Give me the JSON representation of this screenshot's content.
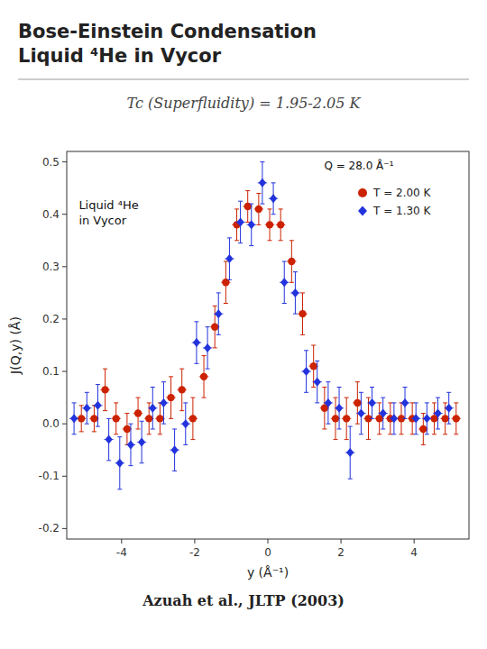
{
  "chart_data": {
    "type": "scatter",
    "title": "Bose-Einstein Condensation\nLiquid ⁴He in Vycor",
    "subtitle": "Tc (Superfluidity) = 1.95-2.05 K",
    "x_label": "y (Å⁻¹)",
    "y_label": "J(Q,y) (Å)",
    "annotations": [
      {
        "text": "Liquid ⁴He\nin Vycor"
      },
      {
        "text": "Q = 28.0 Å⁻¹"
      },
      {
        "text": "Azuah et al., JLTP (2003)"
      }
    ],
    "xlim": [
      -5.5,
      5.5
    ],
    "ylim": [
      -0.22,
      0.52
    ],
    "xticks": [
      -4,
      -2,
      0,
      2,
      4
    ],
    "yticks": [
      -0.2,
      -0.1,
      {
        "value": 0,
        "label": "0.0"
      },
      0.1,
      0.2,
      0.3,
      0.4,
      0.5
    ],
    "grid": false,
    "legend": "upper right",
    "series": [
      {
        "name": "T = 2.00 K",
        "color": "#CC2200",
        "marker": "circle",
        "x": [
          -5.1,
          -4.75,
          -4.45,
          -4.15,
          -3.85,
          -3.55,
          -3.25,
          -2.95,
          -2.65,
          -2.35,
          -2.05,
          -1.75,
          -1.45,
          -1.15,
          -0.85,
          -0.55,
          -0.25,
          0.05,
          0.35,
          0.65,
          0.95,
          1.25,
          1.55,
          1.85,
          2.15,
          2.45,
          2.75,
          3.05,
          3.35,
          3.65,
          3.95,
          4.25,
          4.55,
          4.85,
          5.15
        ],
        "values": [
          0.01,
          0.01,
          0.065,
          0.01,
          -0.01,
          0.02,
          0.01,
          0.01,
          0.05,
          0.065,
          0.01,
          0.09,
          0.185,
          0.27,
          0.38,
          0.415,
          0.41,
          0.38,
          0.38,
          0.31,
          0.21,
          0.11,
          0.03,
          0.01,
          0.01,
          0.04,
          0.01,
          0.01,
          0.01,
          0.01,
          0.01,
          -0.01,
          0.01,
          0.01,
          0.01
        ],
        "errors": [
          0.025,
          0.025,
          0.04,
          0.03,
          0.03,
          0.03,
          0.03,
          0.03,
          0.04,
          0.04,
          0.04,
          0.04,
          0.04,
          0.04,
          0.03,
          0.03,
          0.03,
          0.03,
          0.03,
          0.04,
          0.04,
          0.04,
          0.04,
          0.04,
          0.04,
          0.04,
          0.04,
          0.03,
          0.03,
          0.03,
          0.03,
          0.03,
          0.03,
          0.03,
          0.03
        ]
      },
      {
        "name": "T = 1.30 K",
        "color": "#2233DD",
        "marker": "diamond",
        "x": [
          -5.3,
          -4.95,
          -4.65,
          -4.35,
          -4.05,
          -3.75,
          -3.45,
          -3.15,
          -2.85,
          -2.55,
          -2.25,
          -1.95,
          -1.65,
          -1.35,
          -1.05,
          -0.75,
          -0.45,
          -0.15,
          0.15,
          0.45,
          0.75,
          1.05,
          1.35,
          1.65,
          1.95,
          2.25,
          2.55,
          2.85,
          3.15,
          3.45,
          3.75,
          4.05,
          4.35,
          4.65,
          4.95
        ],
        "values": [
          0.01,
          0.03,
          0.035,
          -0.03,
          -0.075,
          -0.04,
          -0.035,
          0.03,
          0.04,
          -0.05,
          0.0,
          0.155,
          0.145,
          0.21,
          0.315,
          0.385,
          0.38,
          0.46,
          0.43,
          0.27,
          0.25,
          0.1,
          0.08,
          0.04,
          0.03,
          -0.055,
          0.02,
          0.04,
          0.02,
          0.01,
          0.04,
          0.01,
          0.01,
          0.02,
          0.03
        ],
        "errors": [
          0.03,
          0.03,
          0.04,
          0.04,
          0.05,
          0.04,
          0.04,
          0.04,
          0.04,
          0.04,
          0.04,
          0.04,
          0.04,
          0.04,
          0.04,
          0.04,
          0.04,
          0.04,
          0.03,
          0.04,
          0.04,
          0.04,
          0.04,
          0.04,
          0.04,
          0.05,
          0.04,
          0.03,
          0.03,
          0.03,
          0.03,
          0.03,
          0.03,
          0.03,
          0.03
        ]
      }
    ]
  }
}
